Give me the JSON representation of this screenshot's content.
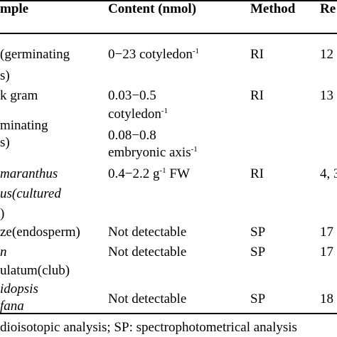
{
  "table": {
    "headers": {
      "sample": "mple",
      "content": "Content (nmol)",
      "method": "Method",
      "reference": "Re"
    },
    "rows": [
      {
        "sample_lines": [
          "(germinating",
          "s)"
        ],
        "content": {
          "text": "0−23 cotyledon",
          "sup": "-1"
        },
        "method": "RI",
        "reference": "12"
      },
      {
        "sample_lines": [
          "k gram",
          "minating",
          "s)"
        ],
        "content_lines": [
          {
            "text": "0.03−0.5",
            "sup": ""
          },
          {
            "text": "cotyledon",
            "sup": "-1"
          },
          {
            "text": "0.08−0.8",
            "sup": ""
          },
          {
            "text": "embryonic axis",
            "sup": "-1"
          }
        ],
        "method": "RI",
        "reference": "13"
      },
      {
        "sample_lines": [
          "maranthus",
          "us(cultured",
          ")"
        ],
        "content": {
          "text": "0.4−2.2 g",
          "sup": "-1",
          "tail": " FW"
        },
        "method": "RI",
        "reference": "4, 3"
      },
      {
        "sample_lines": [
          "ze(endosperm)"
        ],
        "content": {
          "text": "Not detectable"
        },
        "method": "SP",
        "reference": "17"
      },
      {
        "sample_lines": [
          "n",
          "ulatum(club)"
        ],
        "content": {
          "text": "Not detectable"
        },
        "method": "SP",
        "reference": "17"
      },
      {
        "sample_lines": [
          "idopsis",
          "fana"
        ],
        "content": {
          "text": "Not detectable"
        },
        "method": "SP",
        "reference": "18"
      }
    ],
    "footnote": "dioisotopic analysis; SP: spectrophotometrical analysis"
  }
}
